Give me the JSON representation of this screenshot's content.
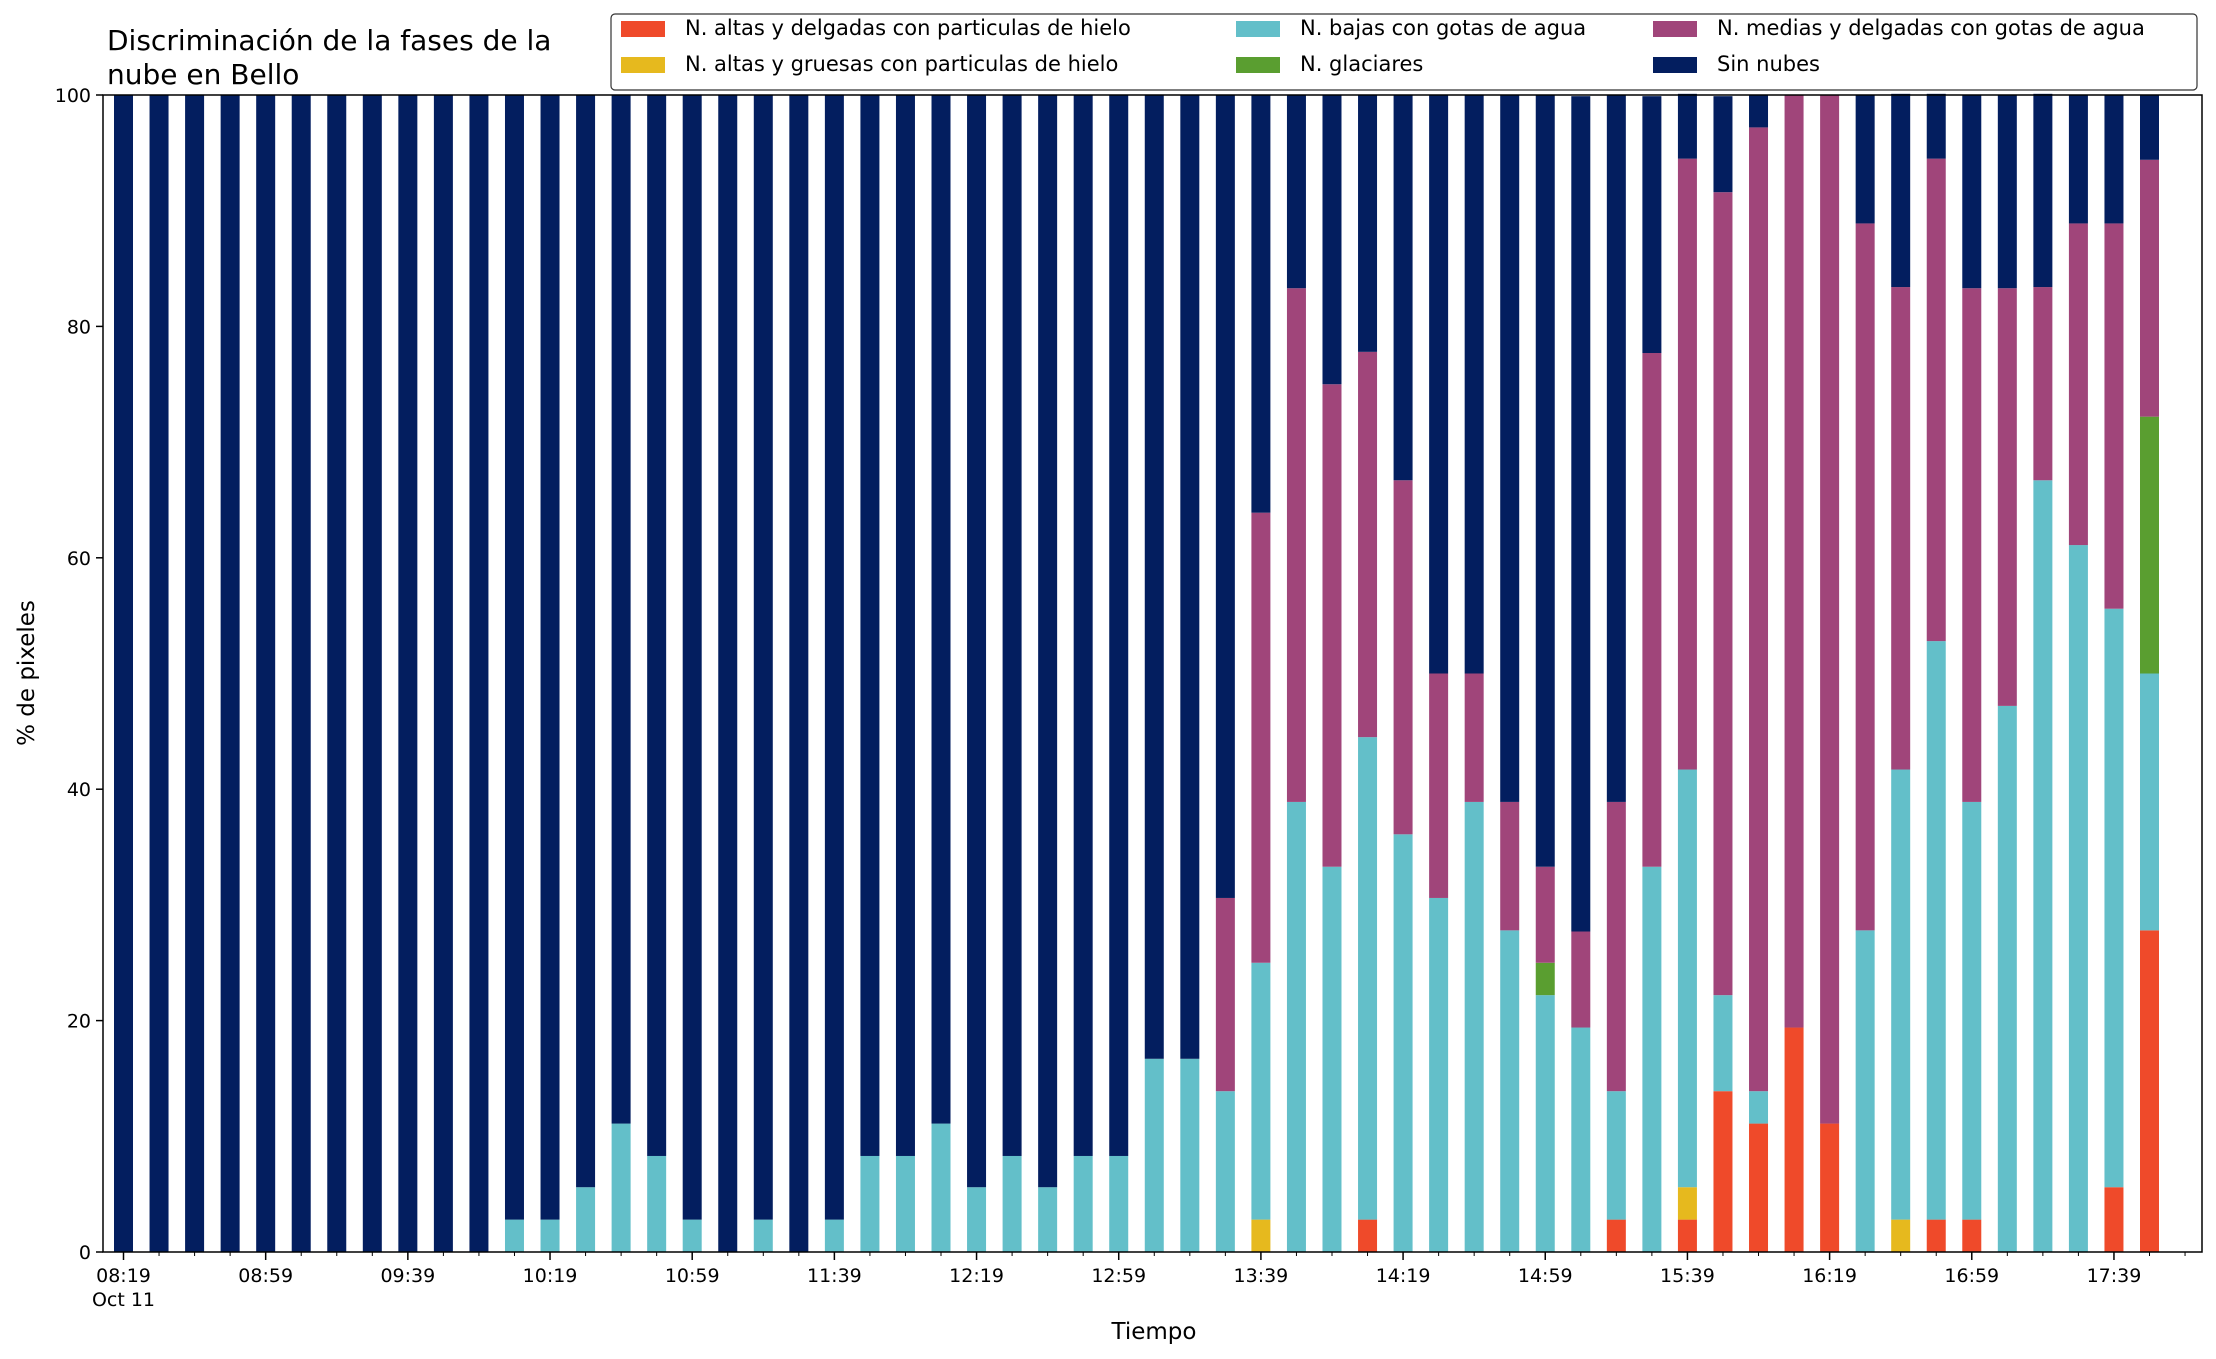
{
  "chart_data": {
    "type": "bar",
    "stacked": true,
    "title": "Discriminación de la fases de la nube en Bello",
    "title_lines": [
      "Discriminación de la fases de la",
      "nube en Bello"
    ],
    "xlabel": "Tiempo",
    "ylabel": "% de pixeles",
    "ylim": [
      0,
      100
    ],
    "yticks": [
      0,
      20,
      40,
      60,
      80,
      100
    ],
    "xticks": [
      {
        "index": 0,
        "label": "08:19",
        "sublabel": "Oct 11"
      },
      {
        "index": 4,
        "label": "08:59"
      },
      {
        "index": 8,
        "label": "09:39"
      },
      {
        "index": 12,
        "label": "10:19"
      },
      {
        "index": 16,
        "label": "10:59"
      },
      {
        "index": 20,
        "label": "11:39"
      },
      {
        "index": 24,
        "label": "12:19"
      },
      {
        "index": 28,
        "label": "12:59"
      },
      {
        "index": 32,
        "label": "13:39"
      },
      {
        "index": 36,
        "label": "14:19"
      },
      {
        "index": 40,
        "label": "14:59"
      },
      {
        "index": 44,
        "label": "15:39"
      },
      {
        "index": 48,
        "label": "16:19"
      },
      {
        "index": 52,
        "label": "16:59"
      },
      {
        "index": 56,
        "label": "17:39"
      }
    ],
    "grid": false,
    "legend_position": "top-right",
    "legend_columns": 3,
    "bar_count": 58,
    "series": [
      {
        "name": "N. altas y delgadas con particulas de hielo",
        "color": "#ef4a2a",
        "values": [
          0,
          0,
          0,
          0,
          0,
          0,
          0,
          0,
          0,
          0,
          0,
          0,
          0,
          0,
          0,
          0,
          0,
          0,
          0,
          0,
          0,
          0,
          0,
          0,
          0,
          0,
          0,
          0,
          0,
          0,
          0,
          0,
          0,
          0,
          0,
          2.8,
          0,
          0,
          0,
          0,
          0,
          0,
          2.8,
          0,
          2.8,
          13.9,
          11.1,
          19.4,
          11.1,
          0,
          0,
          2.8,
          2.8,
          0,
          0,
          0,
          5.6,
          27.8
        ]
      },
      {
        "name": "N. altas y gruesas con particulas de hielo",
        "color": "#e6b91e",
        "values": [
          0,
          0,
          0,
          0,
          0,
          0,
          0,
          0,
          0,
          0,
          0,
          0,
          0,
          0,
          0,
          0,
          0,
          0,
          0,
          0,
          0,
          0,
          0,
          0,
          0,
          0,
          0,
          0,
          0,
          0,
          0,
          0,
          2.8,
          0,
          0,
          0,
          0,
          0,
          0,
          0,
          0,
          0,
          0,
          0,
          2.8,
          0,
          0,
          0,
          0,
          0,
          2.8,
          0,
          0,
          0,
          0,
          0,
          0,
          0
        ]
      },
      {
        "name": "N. bajas con gotas de agua",
        "color": "#63bfc9",
        "values": [
          0,
          0,
          0,
          0,
          0,
          0,
          0,
          0,
          0,
          0,
          0,
          2.8,
          2.8,
          5.6,
          11.1,
          8.3,
          2.8,
          0,
          2.8,
          0,
          2.8,
          8.3,
          8.3,
          11.1,
          5.6,
          8.3,
          5.6,
          8.3,
          8.3,
          16.7,
          16.7,
          13.9,
          22.2,
          38.9,
          33.3,
          41.7,
          36.1,
          30.6,
          38.9,
          27.8,
          22.2,
          19.4,
          11.1,
          33.3,
          36.1,
          8.3,
          2.8,
          0,
          0,
          27.8,
          38.9,
          50,
          36.1,
          47.2,
          66.7,
          61.1,
          50,
          22.2
        ]
      },
      {
        "name": "N. glaciares",
        "color": "#5a9e30",
        "values": [
          0,
          0,
          0,
          0,
          0,
          0,
          0,
          0,
          0,
          0,
          0,
          0,
          0,
          0,
          0,
          0,
          0,
          0,
          0,
          0,
          0,
          0,
          0,
          0,
          0,
          0,
          0,
          0,
          0,
          0,
          0,
          0,
          0,
          0,
          0,
          0,
          0,
          0,
          0,
          0,
          2.8,
          0,
          0,
          0,
          0,
          0,
          0,
          0,
          0,
          0,
          0,
          0,
          0,
          0,
          0,
          0,
          0,
          22.2
        ]
      },
      {
        "name": "N. medias y delgadas con gotas de agua",
        "color": "#a0457a",
        "values": [
          0,
          0,
          0,
          0,
          0,
          0,
          0,
          0,
          0,
          0,
          0,
          0,
          0,
          0,
          0,
          0,
          0,
          0,
          0,
          0,
          0,
          0,
          0,
          0,
          0,
          0,
          0,
          0,
          0,
          0,
          0,
          16.7,
          38.9,
          44.4,
          41.7,
          33.3,
          30.6,
          19.4,
          11.1,
          11.1,
          8.3,
          8.3,
          25,
          44.4,
          52.8,
          69.4,
          83.3,
          80.6,
          88.9,
          61.1,
          41.7,
          41.7,
          44.4,
          36.1,
          16.7,
          27.8,
          33.3,
          22.2
        ]
      },
      {
        "name": "Sin nubes",
        "color": "#031e5f",
        "values": [
          100,
          100,
          100,
          100,
          100,
          100,
          100,
          100,
          100,
          100,
          100,
          97.2,
          97.2,
          94.4,
          88.9,
          91.7,
          97.2,
          100,
          97.2,
          100,
          97.2,
          91.7,
          91.7,
          88.9,
          94.4,
          91.7,
          94.4,
          91.7,
          91.7,
          83.3,
          83.3,
          69.4,
          36.1,
          16.7,
          25,
          22.2,
          33.3,
          50,
          50,
          61.1,
          66.7,
          72.2,
          61.1,
          22.2,
          5.6,
          8.3,
          2.8,
          0,
          0,
          11.1,
          16.7,
          5.6,
          16.7,
          16.7,
          16.7,
          11.1,
          11.1,
          5.6
        ]
      }
    ]
  }
}
